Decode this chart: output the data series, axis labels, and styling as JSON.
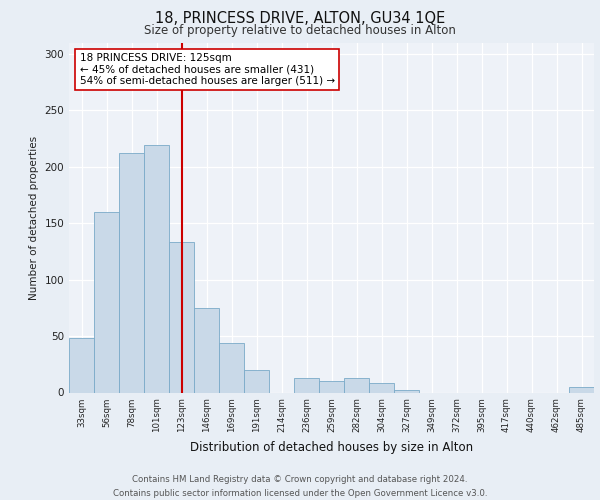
{
  "title": "18, PRINCESS DRIVE, ALTON, GU34 1QE",
  "subtitle": "Size of property relative to detached houses in Alton",
  "xlabel": "Distribution of detached houses by size in Alton",
  "ylabel": "Number of detached properties",
  "bar_labels": [
    "33sqm",
    "56sqm",
    "78sqm",
    "101sqm",
    "123sqm",
    "146sqm",
    "169sqm",
    "191sqm",
    "214sqm",
    "236sqm",
    "259sqm",
    "282sqm",
    "304sqm",
    "327sqm",
    "349sqm",
    "372sqm",
    "395sqm",
    "417sqm",
    "440sqm",
    "462sqm",
    "485sqm"
  ],
  "bar_values": [
    48,
    160,
    212,
    219,
    133,
    75,
    44,
    20,
    0,
    13,
    10,
    13,
    8,
    2,
    0,
    0,
    0,
    0,
    0,
    0,
    5
  ],
  "bar_color": "#c9d9e8",
  "bar_edge_color": "#7aaac8",
  "property_line_label": "18 PRINCESS DRIVE: 125sqm",
  "annotation_line1": "← 45% of detached houses are smaller (431)",
  "annotation_line2": "54% of semi-detached houses are larger (511) →",
  "vline_color": "#cc0000",
  "annotation_box_color": "#ffffff",
  "annotation_box_edge": "#cc0000",
  "vline_x": 4.0,
  "ylim": [
    0,
    310
  ],
  "yticks": [
    0,
    50,
    100,
    150,
    200,
    250,
    300
  ],
  "footer1": "Contains HM Land Registry data © Crown copyright and database right 2024.",
  "footer2": "Contains public sector information licensed under the Open Government Licence v3.0.",
  "bg_color": "#e8eef5",
  "plot_bg_color": "#eef2f8"
}
